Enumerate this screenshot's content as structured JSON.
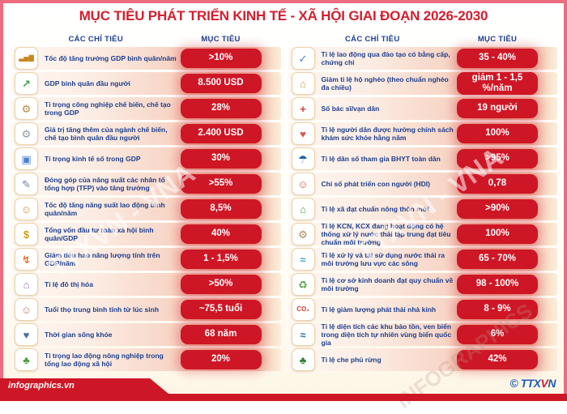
{
  "title": "MỤC TIÊU PHÁT TRIỂN KINH TẾ - XÃ HỘI GIAI ĐOẠN 2026-2030",
  "colors": {
    "accent_red": "#ce1726",
    "badge_red": "#ce1726",
    "text_blue": "#1c3e8e",
    "header_blue": "#1b3f8f",
    "frame_pink": "#ee6b80",
    "row_fade_salmon": "#f0b29c"
  },
  "columns": [
    {
      "indicators_header": "CÁC CHỈ TIÊU",
      "target_header": "MỤC TIÊU",
      "rows": [
        {
          "icon": "gdp-growth-bar-chart-icon",
          "glyph": "▃▅▇",
          "icon_color": "#c8881e",
          "label": "Tốc độ tăng trưởng GDP bình quân/năm",
          "value": ">10%"
        },
        {
          "icon": "gdp-per-capita-icon",
          "glyph": "↗",
          "icon_color": "#3a9e3f",
          "label": "GDP bình quân đầu người",
          "value": "8.500 USD"
        },
        {
          "icon": "manufacturing-industry-icon",
          "glyph": "⚙",
          "icon_color": "#b98a4a",
          "label": "Tỉ trọng công nghiệp chế biến, chế tạo trong GDP",
          "value": "28%"
        },
        {
          "icon": "factory-added-value-icon",
          "glyph": "⚙",
          "icon_color": "#8f9aa6",
          "label": "Giá trị tăng thêm của ngành chế biến, chế tạo bình quân đầu người",
          "value": "2.400 USD"
        },
        {
          "icon": "digital-economy-icon",
          "glyph": "▣",
          "icon_color": "#4a7fd4",
          "label": "Tỉ trọng kinh tế số trong GDP",
          "value": "30%"
        },
        {
          "icon": "tfp-tablet-icon",
          "glyph": "✎",
          "icon_color": "#6b7f99",
          "label": "Đóng góp của năng suất các nhân tố tổng hợp (TFP) vào tăng trưởng",
          "value": ">55%"
        },
        {
          "icon": "labor-productivity-workers-icon",
          "glyph": "☺",
          "icon_color": "#d78f2a",
          "label": "Tốc độ tăng năng suất lao động bình quân/năm",
          "value": "8,5%"
        },
        {
          "icon": "investment-money-bags-icon",
          "glyph": "$",
          "icon_color": "#caa21d",
          "label": "Tổng vốn đầu tư toàn xã hội bình quân/GDP",
          "value": "40%"
        },
        {
          "icon": "energy-meter-icon",
          "glyph": "↯",
          "icon_color": "#e0762e",
          "label": "Giảm tiêu hao năng lượng tính trên GDP/năm",
          "value": "1 - 1,5%"
        },
        {
          "icon": "urbanization-city-icon",
          "glyph": "⌂",
          "icon_color": "#9a6fb5",
          "label": "Tỉ lệ đô thị hóa",
          "value": ">50%"
        },
        {
          "icon": "elderly-couple-icon",
          "glyph": "☺",
          "icon_color": "#c77d6e",
          "label": "Tuổi thọ trung bình tính từ lúc sinh",
          "value": "~75,5 tuổi"
        },
        {
          "icon": "healthy-living-icon",
          "glyph": "♥",
          "icon_color": "#4a6fa5",
          "label": "Thời gian sống khỏe",
          "value": "68 năm"
        },
        {
          "icon": "farmers-agriculture-icon",
          "glyph": "♣",
          "icon_color": "#4f9e3a",
          "label": "Tỉ trọng lao động nông nghiệp trong tổng lao động xã hội",
          "value": "20%"
        }
      ]
    },
    {
      "indicators_header": "CÁC CHỈ TIÊU",
      "target_header": "MỤC TIÊU",
      "rows": [
        {
          "icon": "trained-workers-icon",
          "glyph": "✓",
          "icon_color": "#3f7fd4",
          "label": "Tỉ lệ lao động qua đào tạo có bằng cấp, chứng chỉ",
          "value": "35 - 40%"
        },
        {
          "icon": "poor-household-house-icon",
          "glyph": "⌂",
          "icon_color": "#c89a4a",
          "label": "Giảm tỉ lệ hộ nghèo (theo chuẩn nghèo đa chiều)",
          "value": "giảm 1 - 1,5 %/năm"
        },
        {
          "icon": "doctor-icon",
          "glyph": "+",
          "icon_color": "#d23b3b",
          "label": "Số bác sĩ/vạn dân",
          "value": "19 người"
        },
        {
          "icon": "health-checkup-icon",
          "glyph": "♥",
          "icon_color": "#e05252",
          "label": "Tỉ lệ người dân được hưởng chính sách khám sức khỏe hằng năm",
          "value": "100%"
        },
        {
          "icon": "bhyt-insurance-umbrella-icon",
          "glyph": "☂",
          "icon_color": "#1d5fae",
          "label": "Tỉ lệ dân số tham gia BHYT toàn dân",
          "value": ">95%"
        },
        {
          "icon": "family-hdi-icon",
          "glyph": "☺",
          "icon_color": "#d0574a",
          "label": "Chỉ số phát triển con người (HDI)",
          "value": "0,78"
        },
        {
          "icon": "rural-village-icon",
          "glyph": "⌂",
          "icon_color": "#58a042",
          "label": "Tỉ lệ xã đạt chuẩn nông thôn mới",
          "value": ">90%"
        },
        {
          "icon": "industrial-zone-icon",
          "glyph": "⚙",
          "icon_color": "#a98a5f",
          "label": "Tỉ lệ KCN, KCX đang hoạt động có hệ thống xử lý nước thải tập trung đạt tiêu chuẩn môi trường",
          "value": "100%"
        },
        {
          "icon": "wastewater-treatment-icon",
          "glyph": "≈",
          "icon_color": "#3aa7c9",
          "label": "Tỉ lệ xử lý và tái sử dụng nước thải ra môi trường lưu vực các sông",
          "value": "65 - 70%"
        },
        {
          "icon": "garbage-truck-icon",
          "glyph": "♻",
          "icon_color": "#58a042",
          "label": "Tỉ lệ cơ sở kinh doanh đạt quy chuẩn về môi trường",
          "value": "98 - 100%"
        },
        {
          "icon": "co2-emission-icon",
          "glyph": "CO₂",
          "icon_color": "#d23b3b",
          "label": "Tỉ lệ giảm lượng phát thải nhà kính",
          "value": "8 - 9%"
        },
        {
          "icon": "marine-reserve-whale-icon",
          "glyph": "≈",
          "icon_color": "#2f6f9e",
          "label": "Tỉ lệ diện tích các khu bảo tồn, ven biển trong diện tích tự nhiên vùng biển quốc gia",
          "value": "6%"
        },
        {
          "icon": "forest-trees-icon",
          "glyph": "♣",
          "icon_color": "#2e7d32",
          "label": "Tỉ lệ che phủ rừng",
          "value": "42%"
        }
      ]
    }
  ],
  "watermarks": {
    "wm1": "TTXVN - VNA",
    "wm2": "TTXVN - VNA",
    "wm3": "INFOGRAPHICS"
  },
  "footer": {
    "source": "infographics.vn",
    "credit_prefix": "© TTX",
    "credit_v": "V",
    "credit_n": "N"
  }
}
